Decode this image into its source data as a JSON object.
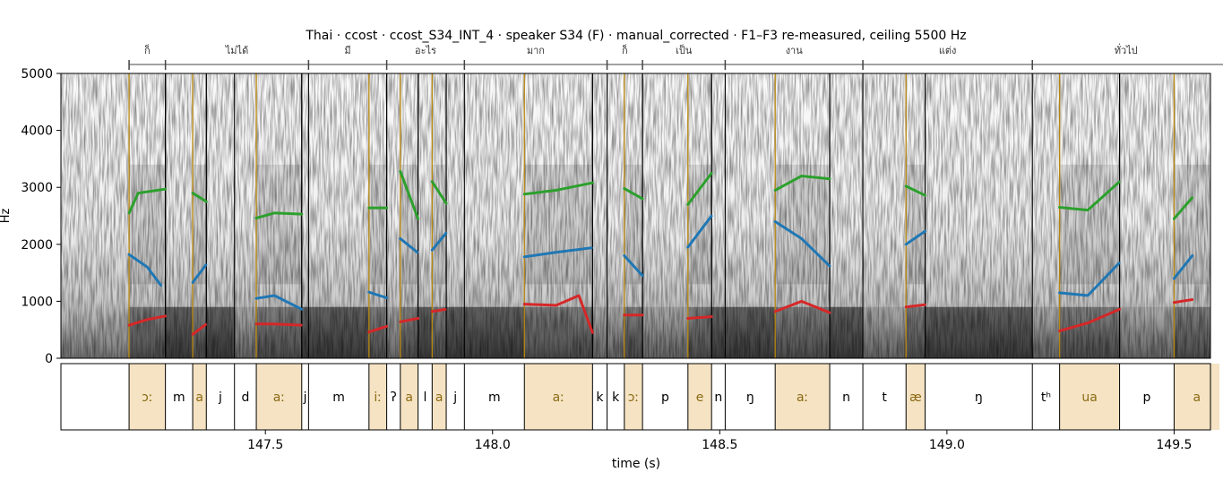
{
  "chart_data": {
    "type": "spectrogram",
    "title": "Thai · ccost · ccost_S34_INT_4 · speaker S34 (F) · manual_corrected · F1–F3 re-measured, ceiling 5500 Hz",
    "xlabel": "time (s)",
    "ylabel": "Hz",
    "xlim": [
      147.05,
      149.58
    ],
    "ylim": [
      0,
      5000
    ],
    "xticks": [
      "147.5",
      "148.0",
      "148.5",
      "149.0",
      "149.5"
    ],
    "xtick_values": [
      147.5,
      148.0,
      148.5,
      149.0,
      149.5
    ],
    "yticks": [
      "0",
      "1000",
      "2000",
      "3000",
      "4000",
      "5000"
    ],
    "ytick_values": [
      0,
      1000,
      2000,
      3000,
      4000,
      5000
    ],
    "colors": {
      "F1": "#d62728",
      "F2": "#1f77b4",
      "F3": "#2ca02c",
      "vowel_fill": "#f5e3c3",
      "vowel_text": "#8b6b14",
      "vowel_line": "#b8860b"
    },
    "words": [
      {
        "label": "ก็",
        "start": 147.2,
        "end": 147.28
      },
      {
        "label": "ไม่ได้",
        "start": 147.28,
        "end": 147.595
      },
      {
        "label": "มี",
        "start": 147.595,
        "end": 147.767
      },
      {
        "label": "อะไร",
        "start": 147.767,
        "end": 147.938
      },
      {
        "label": "มาก",
        "start": 147.938,
        "end": 148.252
      },
      {
        "label": "ก็",
        "start": 148.252,
        "end": 148.33
      },
      {
        "label": "เป็น",
        "start": 148.33,
        "end": 148.512
      },
      {
        "label": "งาน",
        "start": 148.512,
        "end": 148.815
      },
      {
        "label": "แต่ง",
        "start": 148.815,
        "end": 149.188
      },
      {
        "label": "ทั่วไป",
        "start": 149.188,
        "end": 149.6
      }
    ],
    "phones": [
      {
        "label": "ɔː",
        "start": 147.2,
        "end": 147.28,
        "vowel": true
      },
      {
        "label": "m",
        "start": 147.28,
        "end": 147.34,
        "vowel": false
      },
      {
        "label": "a",
        "start": 147.34,
        "end": 147.37,
        "vowel": true
      },
      {
        "label": "j",
        "start": 147.37,
        "end": 147.432,
        "vowel": false
      },
      {
        "label": "d",
        "start": 147.432,
        "end": 147.48,
        "vowel": false
      },
      {
        "label": "aː",
        "start": 147.48,
        "end": 147.58,
        "vowel": true
      },
      {
        "label": "j",
        "start": 147.58,
        "end": 147.595,
        "vowel": false
      },
      {
        "label": "m",
        "start": 147.595,
        "end": 147.728,
        "vowel": false
      },
      {
        "label": "iː",
        "start": 147.728,
        "end": 147.767,
        "vowel": true
      },
      {
        "label": "ʔ",
        "start": 147.767,
        "end": 147.797,
        "vowel": false
      },
      {
        "label": "a",
        "start": 147.797,
        "end": 147.836,
        "vowel": true
      },
      {
        "label": "l",
        "start": 147.836,
        "end": 147.867,
        "vowel": false
      },
      {
        "label": "a",
        "start": 147.867,
        "end": 147.898,
        "vowel": true
      },
      {
        "label": "j",
        "start": 147.898,
        "end": 147.938,
        "vowel": false
      },
      {
        "label": "m",
        "start": 147.938,
        "end": 148.07,
        "vowel": false
      },
      {
        "label": "aː",
        "start": 148.07,
        "end": 148.22,
        "vowel": true
      },
      {
        "label": "k",
        "start": 148.22,
        "end": 148.252,
        "vowel": false
      },
      {
        "label": "k",
        "start": 148.252,
        "end": 148.29,
        "vowel": false
      },
      {
        "label": "ɔː",
        "start": 148.29,
        "end": 148.33,
        "vowel": true
      },
      {
        "label": "p",
        "start": 148.33,
        "end": 148.43,
        "vowel": false
      },
      {
        "label": "e",
        "start": 148.43,
        "end": 148.482,
        "vowel": true
      },
      {
        "label": "n",
        "start": 148.482,
        "end": 148.512,
        "vowel": false
      },
      {
        "label": "ŋ",
        "start": 148.512,
        "end": 148.622,
        "vowel": false
      },
      {
        "label": "aː",
        "start": 148.622,
        "end": 148.742,
        "vowel": true
      },
      {
        "label": "n",
        "start": 148.742,
        "end": 148.815,
        "vowel": false
      },
      {
        "label": "t",
        "start": 148.815,
        "end": 148.91,
        "vowel": false
      },
      {
        "label": "æ",
        "start": 148.91,
        "end": 148.952,
        "vowel": true
      },
      {
        "label": "ŋ",
        "start": 148.952,
        "end": 149.188,
        "vowel": false
      },
      {
        "label": "tʰ",
        "start": 149.188,
        "end": 149.248,
        "vowel": false
      },
      {
        "label": "ua",
        "start": 149.248,
        "end": 149.38,
        "vowel": true
      },
      {
        "label": "p",
        "start": 149.38,
        "end": 149.5,
        "vowel": false
      },
      {
        "label": "a",
        "start": 149.5,
        "end": 149.6,
        "vowel": true
      }
    ],
    "formant_tracks": [
      {
        "segment": "ɔː",
        "F1": [
          [
            147.2,
            580
          ],
          [
            147.24,
            680
          ],
          [
            147.28,
            740
          ]
        ],
        "F2": [
          [
            147.2,
            1820
          ],
          [
            147.24,
            1600
          ],
          [
            147.27,
            1280
          ]
        ],
        "F3": [
          [
            147.2,
            2550
          ],
          [
            147.22,
            2900
          ],
          [
            147.28,
            2970
          ]
        ]
      },
      {
        "segment": "a",
        "F1": [
          [
            147.34,
            420
          ],
          [
            147.37,
            600
          ]
        ],
        "F2": [
          [
            147.34,
            1330
          ],
          [
            147.37,
            1650
          ]
        ],
        "F3": [
          [
            147.34,
            2900
          ],
          [
            147.37,
            2750
          ]
        ]
      },
      {
        "segment": "aː",
        "F1": [
          [
            147.48,
            600
          ],
          [
            147.52,
            600
          ],
          [
            147.58,
            580
          ]
        ],
        "F2": [
          [
            147.48,
            1050
          ],
          [
            147.52,
            1100
          ],
          [
            147.58,
            860
          ]
        ],
        "F3": [
          [
            147.48,
            2460
          ],
          [
            147.52,
            2550
          ],
          [
            147.58,
            2530
          ]
        ]
      },
      {
        "segment": "iː",
        "F1": [
          [
            147.728,
            460
          ],
          [
            147.767,
            560
          ]
        ],
        "F2": [
          [
            147.728,
            1160
          ],
          [
            147.767,
            1060
          ]
        ],
        "F3": [
          [
            147.728,
            2640
          ],
          [
            147.767,
            2640
          ]
        ]
      },
      {
        "segment": "a",
        "F1": [
          [
            147.797,
            640
          ],
          [
            147.836,
            700
          ]
        ],
        "F2": [
          [
            147.797,
            2100
          ],
          [
            147.836,
            1850
          ]
        ],
        "F3": [
          [
            147.797,
            3280
          ],
          [
            147.836,
            2450
          ]
        ]
      },
      {
        "segment": "a",
        "F1": [
          [
            147.867,
            820
          ],
          [
            147.898,
            860
          ]
        ],
        "F2": [
          [
            147.867,
            1900
          ],
          [
            147.898,
            2200
          ]
        ],
        "F3": [
          [
            147.867,
            3100
          ],
          [
            147.898,
            2720
          ]
        ]
      },
      {
        "segment": "aː",
        "F1": [
          [
            148.07,
            950
          ],
          [
            148.14,
            930
          ],
          [
            148.19,
            1100
          ],
          [
            148.22,
            450
          ]
        ],
        "F2": [
          [
            148.07,
            1780
          ],
          [
            148.14,
            1860
          ],
          [
            148.22,
            1940
          ]
        ],
        "F3": [
          [
            148.07,
            2880
          ],
          [
            148.14,
            2950
          ],
          [
            148.22,
            3080
          ]
        ]
      },
      {
        "segment": "ɔː",
        "F1": [
          [
            148.29,
            760
          ],
          [
            148.33,
            760
          ]
        ],
        "F2": [
          [
            148.29,
            1800
          ],
          [
            148.33,
            1450
          ]
        ],
        "F3": [
          [
            148.29,
            2980
          ],
          [
            148.33,
            2800
          ]
        ]
      },
      {
        "segment": "e",
        "F1": [
          [
            148.43,
            700
          ],
          [
            148.482,
            730
          ]
        ],
        "F2": [
          [
            148.43,
            1950
          ],
          [
            148.482,
            2500
          ]
        ],
        "F3": [
          [
            148.43,
            2700
          ],
          [
            148.482,
            3250
          ]
        ]
      },
      {
        "segment": "aː",
        "F1": [
          [
            148.622,
            820
          ],
          [
            148.68,
            1000
          ],
          [
            148.742,
            800
          ]
        ],
        "F2": [
          [
            148.622,
            2400
          ],
          [
            148.68,
            2100
          ],
          [
            148.742,
            1620
          ]
        ],
        "F3": [
          [
            148.622,
            2950
          ],
          [
            148.68,
            3200
          ],
          [
            148.742,
            3150
          ]
        ]
      },
      {
        "segment": "æ",
        "F1": [
          [
            148.91,
            900
          ],
          [
            148.952,
            940
          ]
        ],
        "F2": [
          [
            148.91,
            2000
          ],
          [
            148.952,
            2230
          ]
        ],
        "F3": [
          [
            148.91,
            3020
          ],
          [
            148.952,
            2860
          ]
        ]
      },
      {
        "segment": "ua",
        "F1": [
          [
            149.248,
            480
          ],
          [
            149.31,
            620
          ],
          [
            149.38,
            860
          ]
        ],
        "F2": [
          [
            149.248,
            1150
          ],
          [
            149.31,
            1100
          ],
          [
            149.38,
            1680
          ]
        ],
        "F3": [
          [
            149.248,
            2650
          ],
          [
            149.31,
            2600
          ],
          [
            149.38,
            3100
          ]
        ]
      },
      {
        "segment": "a",
        "F1": [
          [
            149.5,
            980
          ],
          [
            149.54,
            1030
          ]
        ],
        "F2": [
          [
            149.5,
            1400
          ],
          [
            149.54,
            1800
          ]
        ],
        "F3": [
          [
            149.5,
            2450
          ],
          [
            149.54,
            2820
          ]
        ]
      }
    ]
  }
}
